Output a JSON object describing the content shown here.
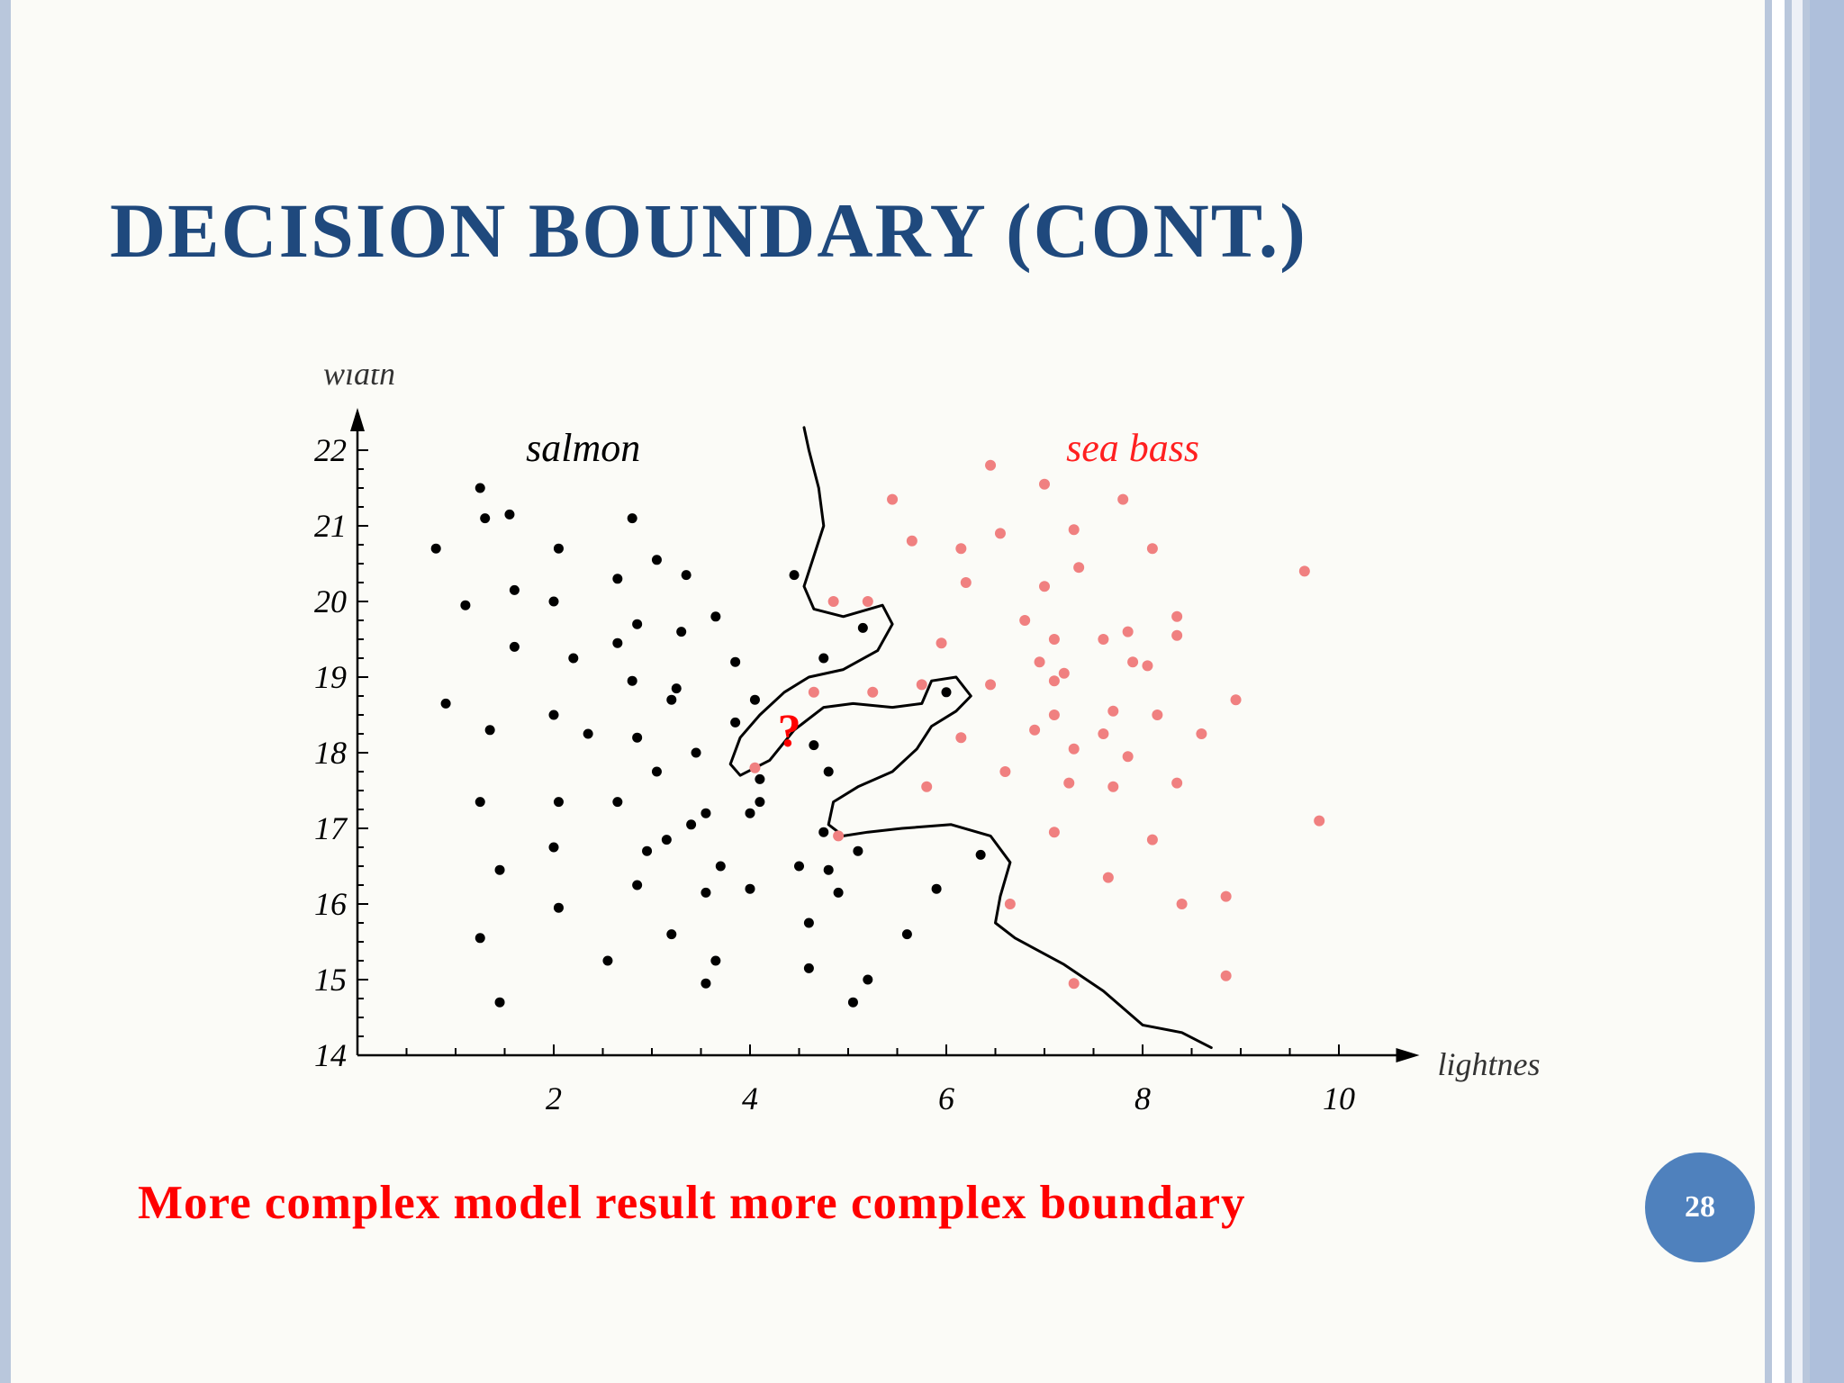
{
  "slide": {
    "title": "DECISION BOUNDARY (CONT.)",
    "caption": "More complex model result more complex boundary",
    "page_number": "28"
  },
  "colors": {
    "title": "#1f497d",
    "caption": "#ff0000",
    "page_circle": "#4f81bd",
    "salmon_points": "#000000",
    "sea_bass_points": "#f08080",
    "question_mark": "#ff0000"
  },
  "chart_data": {
    "type": "scatter",
    "title": "",
    "xlabel": "lightness",
    "ylabel": "width",
    "xlim": [
      0,
      10.5
    ],
    "ylim": [
      14,
      22.5
    ],
    "x_ticks": [
      2,
      4,
      6,
      8,
      10
    ],
    "y_ticks": [
      14,
      15,
      16,
      17,
      18,
      19,
      20,
      21,
      22
    ],
    "grid": false,
    "annotations": [
      {
        "text": "?",
        "x": 4.4,
        "y": 18.3
      }
    ],
    "series": [
      {
        "name": "salmon",
        "label_position": [
          2.3,
          22
        ],
        "points": [
          [
            1.25,
            21.5
          ],
          [
            1.3,
            21.1
          ],
          [
            1.55,
            21.15
          ],
          [
            0.8,
            20.7
          ],
          [
            1.1,
            19.95
          ],
          [
            1.6,
            20.15
          ],
          [
            2.05,
            20.7
          ],
          [
            2.0,
            20.0
          ],
          [
            2.65,
            20.3
          ],
          [
            3.05,
            20.55
          ],
          [
            2.8,
            21.1
          ],
          [
            3.35,
            20.35
          ],
          [
            1.6,
            19.4
          ],
          [
            2.2,
            19.25
          ],
          [
            2.65,
            19.45
          ],
          [
            2.85,
            19.7
          ],
          [
            3.3,
            19.6
          ],
          [
            3.65,
            19.8
          ],
          [
            2.8,
            18.95
          ],
          [
            3.25,
            18.85
          ],
          [
            3.2,
            18.7
          ],
          [
            3.85,
            19.2
          ],
          [
            4.05,
            18.7
          ],
          [
            0.9,
            18.65
          ],
          [
            1.35,
            18.3
          ],
          [
            2.0,
            18.5
          ],
          [
            2.35,
            18.25
          ],
          [
            2.85,
            18.2
          ],
          [
            3.05,
            17.75
          ],
          [
            3.45,
            18.0
          ],
          [
            3.85,
            18.4
          ],
          [
            4.1,
            17.65
          ],
          [
            1.25,
            17.35
          ],
          [
            2.05,
            17.35
          ],
          [
            2.65,
            17.35
          ],
          [
            3.15,
            16.85
          ],
          [
            2.95,
            16.7
          ],
          [
            3.4,
            17.05
          ],
          [
            3.55,
            17.2
          ],
          [
            4.0,
            17.2
          ],
          [
            4.1,
            17.35
          ],
          [
            1.45,
            16.45
          ],
          [
            2.0,
            16.75
          ],
          [
            2.85,
            16.25
          ],
          [
            3.55,
            16.15
          ],
          [
            3.7,
            16.5
          ],
          [
            4.0,
            16.2
          ],
          [
            4.5,
            16.5
          ],
          [
            4.8,
            16.45
          ],
          [
            4.9,
            16.15
          ],
          [
            2.05,
            15.95
          ],
          [
            1.25,
            15.55
          ],
          [
            1.45,
            14.7
          ],
          [
            2.55,
            15.25
          ],
          [
            3.2,
            15.6
          ],
          [
            3.55,
            14.95
          ],
          [
            3.65,
            15.25
          ],
          [
            4.6,
            15.75
          ],
          [
            4.6,
            15.15
          ],
          [
            5.2,
            15.0
          ],
          [
            5.05,
            14.7
          ],
          [
            5.6,
            15.6
          ],
          [
            5.9,
            16.2
          ],
          [
            6.35,
            16.65
          ],
          [
            5.1,
            16.7
          ],
          [
            4.75,
            16.95
          ],
          [
            4.8,
            17.75
          ],
          [
            4.65,
            18.1
          ],
          [
            4.75,
            19.25
          ],
          [
            4.45,
            20.35
          ],
          [
            5.15,
            19.65
          ],
          [
            6.0,
            18.8
          ]
        ]
      },
      {
        "name": "sea bass",
        "label_position": [
          7.9,
          22
        ],
        "points": [
          [
            6.45,
            21.8
          ],
          [
            7.0,
            21.55
          ],
          [
            7.8,
            21.35
          ],
          [
            5.45,
            21.35
          ],
          [
            5.65,
            20.8
          ],
          [
            6.15,
            20.7
          ],
          [
            6.55,
            20.9
          ],
          [
            7.3,
            20.95
          ],
          [
            8.1,
            20.7
          ],
          [
            9.65,
            20.4
          ],
          [
            6.2,
            20.25
          ],
          [
            7.0,
            20.2
          ],
          [
            7.35,
            20.45
          ],
          [
            4.85,
            20.0
          ],
          [
            5.2,
            20.0
          ],
          [
            6.8,
            19.75
          ],
          [
            7.1,
            19.5
          ],
          [
            7.6,
            19.5
          ],
          [
            7.85,
            19.6
          ],
          [
            8.35,
            19.8
          ],
          [
            8.35,
            19.55
          ],
          [
            5.95,
            19.45
          ],
          [
            6.95,
            19.2
          ],
          [
            7.1,
            18.95
          ],
          [
            7.2,
            19.05
          ],
          [
            7.9,
            19.2
          ],
          [
            8.05,
            19.15
          ],
          [
            5.75,
            18.9
          ],
          [
            6.45,
            18.9
          ],
          [
            5.25,
            18.8
          ],
          [
            4.65,
            18.8
          ],
          [
            7.1,
            18.5
          ],
          [
            7.7,
            18.55
          ],
          [
            8.15,
            18.5
          ],
          [
            8.6,
            18.25
          ],
          [
            8.95,
            18.7
          ],
          [
            6.15,
            18.2
          ],
          [
            6.9,
            18.3
          ],
          [
            7.6,
            18.25
          ],
          [
            7.85,
            17.95
          ],
          [
            7.3,
            18.05
          ],
          [
            6.6,
            17.75
          ],
          [
            5.8,
            17.55
          ],
          [
            7.25,
            17.6
          ],
          [
            7.7,
            17.55
          ],
          [
            8.35,
            17.6
          ],
          [
            9.8,
            17.1
          ],
          [
            7.1,
            16.95
          ],
          [
            8.1,
            16.85
          ],
          [
            4.9,
            16.9
          ],
          [
            4.05,
            17.8
          ],
          [
            7.65,
            16.35
          ],
          [
            6.65,
            16.0
          ],
          [
            8.4,
            16.0
          ],
          [
            8.85,
            16.1
          ],
          [
            7.3,
            14.95
          ],
          [
            8.85,
            15.05
          ]
        ]
      }
    ],
    "decision_boundary": [
      [
        4.55,
        22.3
      ],
      [
        4.6,
        22.0
      ],
      [
        4.7,
        21.5
      ],
      [
        4.75,
        21.0
      ],
      [
        4.65,
        20.6
      ],
      [
        4.55,
        20.2
      ],
      [
        4.65,
        19.9
      ],
      [
        4.95,
        19.8
      ],
      [
        5.35,
        19.95
      ],
      [
        5.45,
        19.7
      ],
      [
        5.3,
        19.35
      ],
      [
        4.95,
        19.1
      ],
      [
        4.6,
        19.0
      ],
      [
        4.35,
        18.8
      ],
      [
        4.1,
        18.5
      ],
      [
        3.9,
        18.2
      ],
      [
        3.8,
        17.85
      ],
      [
        3.9,
        17.7
      ],
      [
        4.2,
        17.9
      ],
      [
        4.45,
        18.3
      ],
      [
        4.75,
        18.6
      ],
      [
        5.05,
        18.65
      ],
      [
        5.45,
        18.6
      ],
      [
        5.75,
        18.65
      ],
      [
        5.85,
        18.95
      ],
      [
        6.1,
        19.0
      ],
      [
        6.25,
        18.75
      ],
      [
        6.1,
        18.55
      ],
      [
        5.85,
        18.35
      ],
      [
        5.7,
        18.05
      ],
      [
        5.45,
        17.75
      ],
      [
        5.1,
        17.55
      ],
      [
        4.85,
        17.35
      ],
      [
        4.8,
        17.05
      ],
      [
        4.95,
        16.9
      ],
      [
        5.2,
        16.95
      ],
      [
        5.55,
        17.0
      ],
      [
        6.05,
        17.05
      ],
      [
        6.45,
        16.9
      ],
      [
        6.65,
        16.55
      ],
      [
        6.55,
        16.1
      ],
      [
        6.5,
        15.75
      ],
      [
        6.7,
        15.55
      ],
      [
        7.2,
        15.2
      ],
      [
        7.6,
        14.85
      ],
      [
        8.0,
        14.4
      ],
      [
        8.4,
        14.3
      ],
      [
        8.7,
        14.1
      ]
    ]
  }
}
